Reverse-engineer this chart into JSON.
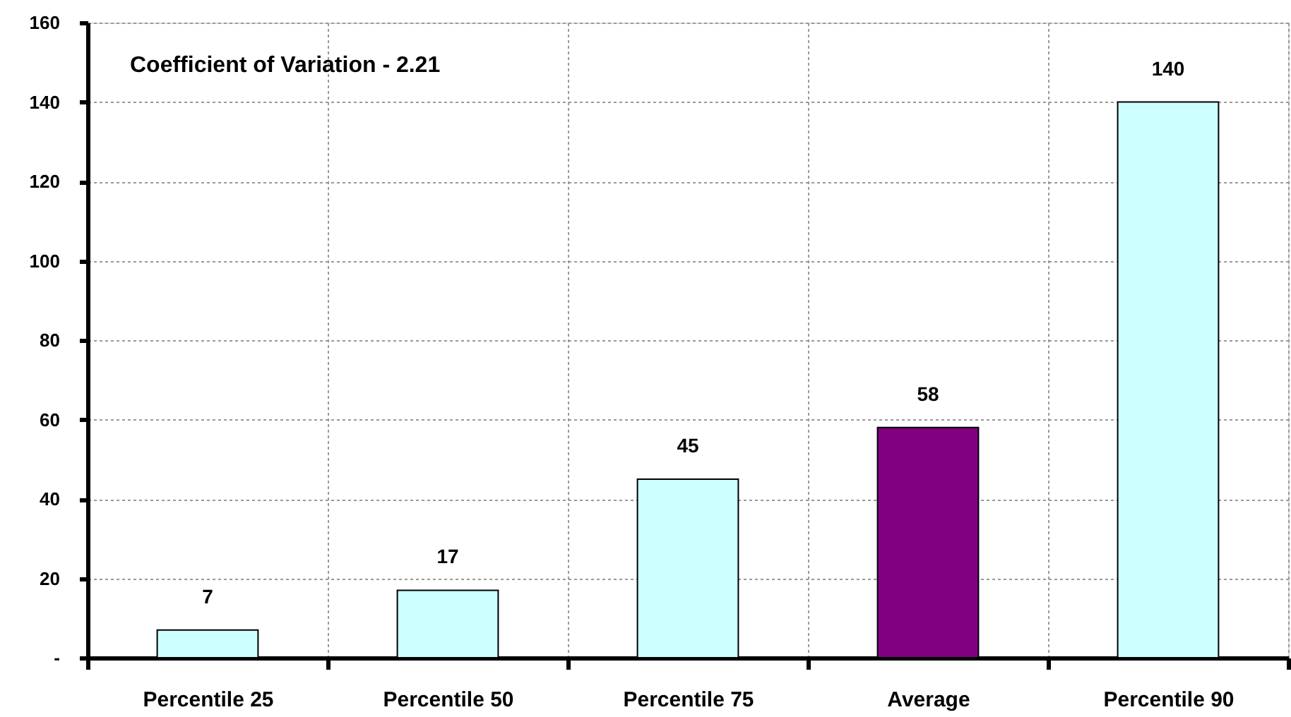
{
  "chart_data": {
    "type": "bar",
    "categories": [
      "Percentile 25",
      "Percentile 50",
      "Percentile 75",
      "Average",
      "Percentile 90"
    ],
    "values": [
      7,
      17,
      45,
      58,
      140
    ],
    "colors": [
      "#ccffff",
      "#ccffff",
      "#ccffff",
      "#800080",
      "#ccffff"
    ],
    "ylim": [
      0,
      160
    ],
    "yticks": [
      {
        "value": 0,
        "label": "-"
      },
      20,
      40,
      60,
      80,
      100,
      120,
      140,
      160
    ],
    "grid": true,
    "data_labels": true,
    "annotations": [
      "Coefficient of Variation - 2.21"
    ]
  }
}
